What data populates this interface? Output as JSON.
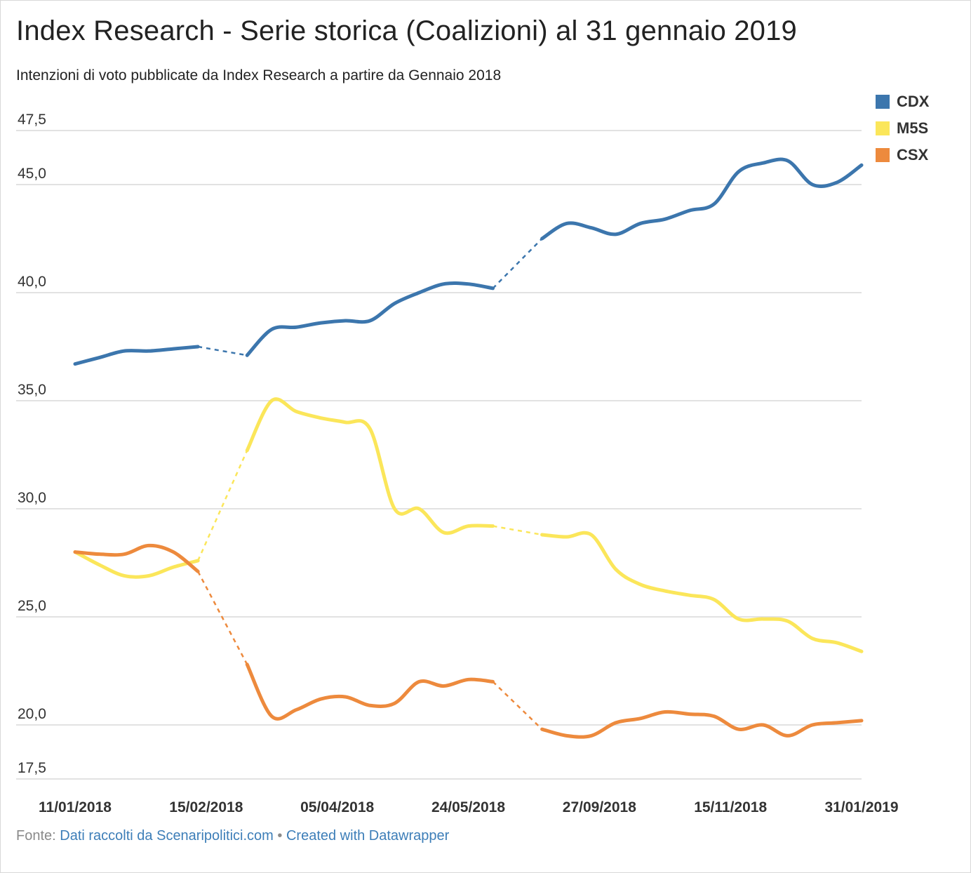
{
  "title": "Index Research - Serie storica (Coalizioni) al 31 gennaio 2019",
  "subtitle": "Intenzioni di voto pubblicate da Index Research a partire da Gennaio 2018",
  "legend": [
    {
      "label": "CDX",
      "color": "#3c76ad"
    },
    {
      "label": "M5S",
      "color": "#fbe65a"
    },
    {
      "label": "CSX",
      "color": "#ed8a3d"
    }
  ],
  "footer": {
    "prefix": "Fonte:",
    "source_link": "Dati raccolti da Scenaripolitici.com",
    "separator": "•",
    "credit_link": "Created with Datawrapper"
  },
  "chart_data": {
    "type": "line",
    "x_labels": [
      "11/01/2018",
      "15/02/2018",
      "05/04/2018",
      "24/05/2018",
      "27/09/2018",
      "15/11/2018",
      "31/01/2019"
    ],
    "y_ticks": [
      "47,5",
      "45,0",
      "40,0",
      "35,0",
      "30,0",
      "25,0",
      "20,0",
      "17,5"
    ],
    "y_tick_values": [
      47.5,
      45.0,
      40.0,
      35.0,
      30.0,
      25.0,
      20.0,
      17.5
    ],
    "ylim": [
      17.5,
      47.5
    ],
    "xlim": [
      0,
      32
    ],
    "grid": true,
    "legend_position": "top-right",
    "gaps": [
      [
        5,
        7
      ],
      [
        17,
        19
      ]
    ],
    "series": [
      {
        "name": "CDX",
        "color": "#3c76ad",
        "x": [
          0,
          1,
          2,
          3,
          4,
          5,
          7,
          8,
          9,
          10,
          11,
          12,
          13,
          14,
          15,
          16,
          17,
          19,
          20,
          21,
          22,
          23,
          24,
          25,
          26,
          27,
          28,
          29,
          30,
          31,
          32
        ],
        "y": [
          36.7,
          37.0,
          37.3,
          37.3,
          37.4,
          37.5,
          37.1,
          38.3,
          38.4,
          38.6,
          38.7,
          38.7,
          39.5,
          40.0,
          40.4,
          40.4,
          40.2,
          42.5,
          43.2,
          43.0,
          42.7,
          43.2,
          43.4,
          43.8,
          44.1,
          45.6,
          46.0,
          46.1,
          45.0,
          45.1,
          45.9
        ]
      },
      {
        "name": "M5S",
        "color": "#fbe65a",
        "x": [
          0,
          1,
          2,
          3,
          4,
          5,
          7,
          8,
          9,
          10,
          11,
          12,
          13,
          14,
          15,
          16,
          17,
          19,
          20,
          21,
          22,
          23,
          24,
          25,
          26,
          27,
          28,
          29,
          30,
          31,
          32
        ],
        "y": [
          28.0,
          27.4,
          26.9,
          26.9,
          27.3,
          27.6,
          32.7,
          35.0,
          34.5,
          34.2,
          34.0,
          33.7,
          30.0,
          30.0,
          28.9,
          29.2,
          29.2,
          28.8,
          28.7,
          28.8,
          27.2,
          26.5,
          26.2,
          26.0,
          25.8,
          24.9,
          24.9,
          24.8,
          24.0,
          23.8,
          23.4
        ]
      },
      {
        "name": "CSX",
        "color": "#ed8a3d",
        "x": [
          0,
          1,
          2,
          3,
          4,
          5,
          7,
          8,
          9,
          10,
          11,
          12,
          13,
          14,
          15,
          16,
          17,
          19,
          20,
          21,
          22,
          23,
          24,
          25,
          26,
          27,
          28,
          29,
          30,
          31,
          32
        ],
        "y": [
          28.0,
          27.9,
          27.9,
          28.3,
          28.0,
          27.1,
          22.8,
          20.4,
          20.7,
          21.2,
          21.3,
          20.9,
          21.0,
          22.0,
          21.8,
          22.1,
          22.0,
          19.8,
          19.5,
          19.5,
          20.1,
          20.3,
          20.6,
          20.5,
          20.4,
          19.8,
          20.0,
          19.5,
          20.0,
          20.1,
          20.2
        ]
      }
    ]
  }
}
